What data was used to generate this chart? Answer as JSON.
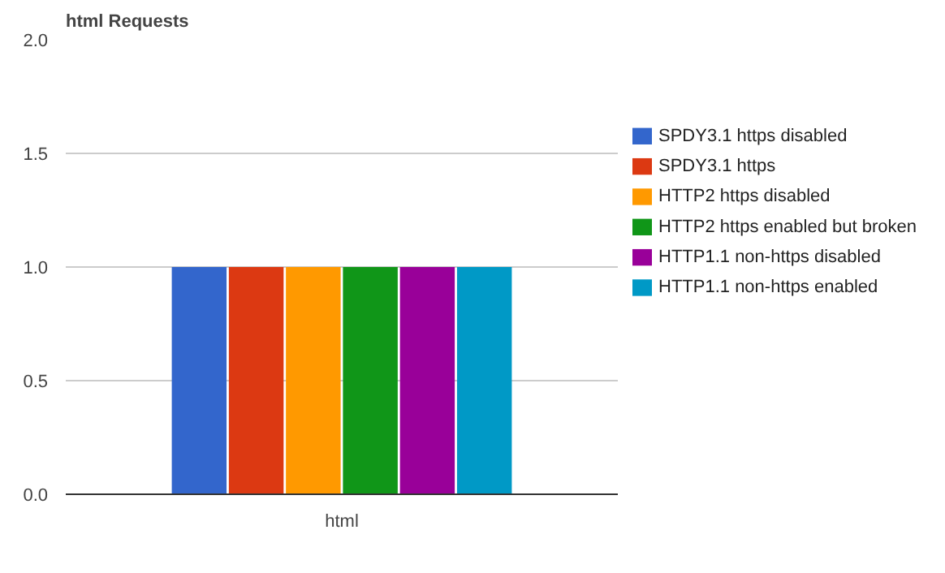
{
  "chart_data": {
    "type": "bar",
    "title": "html Requests",
    "categories": [
      "html"
    ],
    "series": [
      {
        "name": "SPDY3.1 https disabled",
        "color": "#3366cc",
        "values": [
          1
        ]
      },
      {
        "name": "SPDY3.1 https",
        "color": "#dc3912",
        "values": [
          1
        ]
      },
      {
        "name": "HTTP2 https disabled",
        "color": "#ff9900",
        "values": [
          1
        ]
      },
      {
        "name": "HTTP2 https enabled but broken",
        "color": "#109618",
        "values": [
          1
        ]
      },
      {
        "name": "HTTP1.1 non-https disabled",
        "color": "#990099",
        "values": [
          1
        ]
      },
      {
        "name": "HTTP1.1 non-https enabled",
        "color": "#0099c6",
        "values": [
          1
        ]
      }
    ],
    "ylim": [
      0,
      2
    ],
    "yticks": [
      {
        "value": 0,
        "label": "0.0"
      },
      {
        "value": 0.5,
        "label": "0.5"
      },
      {
        "value": 1,
        "label": "1.0"
      },
      {
        "value": 1.5,
        "label": "1.5"
      },
      {
        "value": 2,
        "label": "2.0"
      }
    ],
    "grid": "y",
    "legend": "right"
  }
}
